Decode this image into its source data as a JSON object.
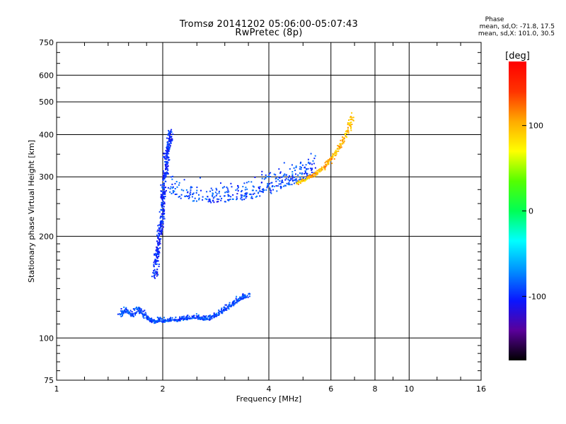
{
  "title": "Tromsø 20141202 05:06:00-05:07:43",
  "subtitle": "RwPretec (8p)",
  "phase_box": {
    "title": "Phase",
    "line1": "mean, sd,O: -71.8, 17.5",
    "line2": "mean, sd,X: 101.0, 30.5"
  },
  "colorbar": {
    "unit": "[deg]",
    "ticks": [
      "100",
      "0",
      "-100"
    ],
    "tick_values": [
      100,
      0,
      -100
    ],
    "range": [
      -175,
      175
    ],
    "colors": [
      "#000000",
      "#5a009a",
      "#0a16ff",
      "#0090ff",
      "#00ffff",
      "#00ff55",
      "#55ff00",
      "#ffff00",
      "#ffaa00",
      "#ff3300",
      "#ff0000"
    ]
  },
  "chart_data": {
    "type": "scatter",
    "title": "Tromsø 20141202 05:06:00-05:07:43",
    "subtitle": "RwPretec (8p)",
    "xlabel": "Frequency [MHz]",
    "ylabel": "Stationary phase Virtual Height [km]",
    "x_scale": "log",
    "y_scale": "log",
    "xlim": [
      1,
      16
    ],
    "ylim": [
      75,
      750
    ],
    "x_ticks": [
      "1",
      "2",
      "4",
      "6",
      "8",
      "10",
      "16"
    ],
    "x_tick_values": [
      1,
      2,
      4,
      6,
      8,
      10,
      16
    ],
    "y_ticks": [
      "75",
      "100",
      "200",
      "300",
      "400",
      "500",
      "600",
      "750"
    ],
    "y_tick_values": [
      75,
      100,
      200,
      300,
      400,
      500,
      600,
      750
    ],
    "grid": true,
    "series": [
      {
        "kind": "o-trace-E",
        "values_desc": "E layer blue",
        "points": [
          [
            1.52,
            115
          ],
          [
            1.55,
            120
          ],
          [
            1.6,
            118
          ],
          [
            1.65,
            115
          ],
          [
            1.7,
            121
          ],
          [
            1.75,
            118
          ],
          [
            1.8,
            114
          ],
          [
            1.85,
            112
          ],
          [
            1.9,
            110
          ],
          [
            1.95,
            112
          ],
          [
            2.0,
            111
          ],
          [
            2.05,
            112
          ],
          [
            2.1,
            112
          ],
          [
            2.2,
            112
          ],
          [
            2.3,
            113
          ],
          [
            2.4,
            114
          ],
          [
            2.5,
            114
          ],
          [
            2.6,
            113
          ],
          [
            2.7,
            113
          ],
          [
            2.8,
            115
          ],
          [
            2.9,
            117
          ],
          [
            3.0,
            120
          ],
          [
            3.1,
            123
          ],
          [
            3.2,
            126
          ],
          [
            3.3,
            129
          ],
          [
            3.4,
            131
          ],
          [
            3.5,
            133
          ]
        ],
        "phase": -90
      },
      {
        "kind": "o-trace-F-vertical",
        "points": [
          [
            1.9,
            150
          ],
          [
            1.92,
            170
          ],
          [
            1.95,
            190
          ],
          [
            1.97,
            210
          ],
          [
            2.0,
            230
          ],
          [
            2.0,
            260
          ],
          [
            2.02,
            290
          ],
          [
            2.05,
            320
          ],
          [
            2.05,
            350
          ],
          [
            2.1,
            380
          ],
          [
            2.1,
            410
          ]
        ],
        "phase": -100
      },
      {
        "kind": "o-trace-F-horizontal",
        "points": [
          [
            2.1,
            270
          ],
          [
            2.2,
            262
          ],
          [
            2.4,
            256
          ],
          [
            2.6,
            254
          ],
          [
            2.8,
            253
          ],
          [
            3.0,
            254
          ],
          [
            3.2,
            256
          ],
          [
            3.4,
            259
          ],
          [
            3.6,
            262
          ],
          [
            3.8,
            266
          ],
          [
            4.0,
            270
          ],
          [
            4.2,
            275
          ],
          [
            4.4,
            280
          ],
          [
            4.6,
            285
          ],
          [
            4.8,
            290
          ],
          [
            5.0,
            295
          ],
          [
            5.2,
            300
          ],
          [
            5.4,
            305
          ]
        ],
        "phase": -90
      },
      {
        "kind": "x-trace-F",
        "points": [
          [
            4.8,
            285
          ],
          [
            5.0,
            290
          ],
          [
            5.2,
            296
          ],
          [
            5.4,
            302
          ],
          [
            5.6,
            310
          ],
          [
            5.8,
            320
          ],
          [
            6.0,
            335
          ],
          [
            6.2,
            350
          ],
          [
            6.4,
            370
          ],
          [
            6.6,
            395
          ],
          [
            6.8,
            420
          ],
          [
            6.9,
            450
          ]
        ],
        "phase": 100
      }
    ]
  }
}
